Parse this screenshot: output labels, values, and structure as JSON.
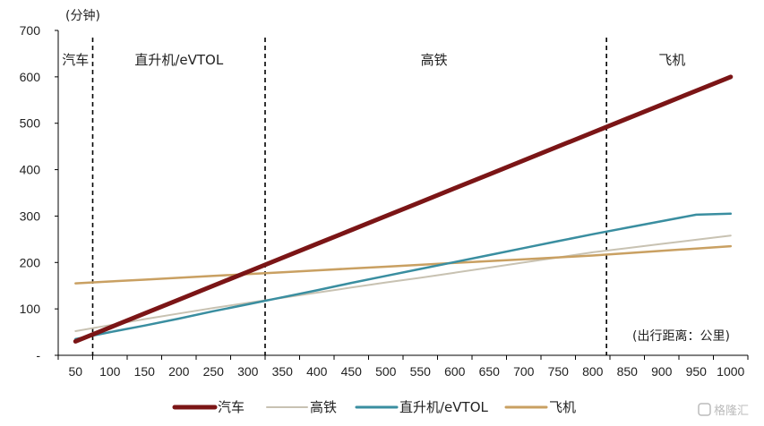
{
  "chart_data": {
    "type": "line",
    "y_unit_label": "(分钟)",
    "x_unit_label": "(出行距离：公里)",
    "x": [
      50,
      100,
      150,
      200,
      250,
      300,
      350,
      400,
      450,
      500,
      550,
      600,
      650,
      700,
      750,
      800,
      850,
      900,
      950,
      1000
    ],
    "xlim": [
      25,
      1025
    ],
    "ylim": [
      0,
      700
    ],
    "y_ticks": [
      0,
      100,
      200,
      300,
      400,
      500,
      600,
      700
    ],
    "y_tick_labels": [
      "-",
      "100",
      "200",
      "300",
      "400",
      "500",
      "600",
      "700"
    ],
    "series": [
      {
        "name": "汽车",
        "color": "#7b1516",
        "values": [
          30,
          60,
          90,
          120,
          150,
          180,
          210,
          240,
          270,
          300,
          330,
          360,
          390,
          420,
          450,
          480,
          510,
          540,
          570,
          600
        ]
      },
      {
        "name": "高铁",
        "color": "#c8c2b2",
        "values": [
          52,
          65,
          78,
          90,
          102,
          113,
          124,
          135,
          146,
          157,
          167,
          178,
          189,
          200,
          211,
          222,
          231,
          240,
          249,
          258
        ]
      },
      {
        "name": "直升机/eVTOL",
        "color": "#3a8ea0",
        "values": [
          35,
          50,
          64,
          79,
          95,
          110,
          125,
          140,
          156,
          171,
          186,
          201,
          216,
          231,
          246,
          261,
          275,
          289,
          303,
          305
        ]
      },
      {
        "name": "飞机",
        "color": "#c9a062",
        "values": [
          155,
          159,
          163,
          167,
          171,
          175,
          179,
          183,
          187,
          191,
          195,
          199,
          203,
          207,
          211,
          215,
          220,
          225,
          230,
          235
        ]
      }
    ],
    "dividers": [
      75,
      325,
      820
    ],
    "zones": [
      {
        "label": "汽车",
        "x": 50
      },
      {
        "label": "直升机/eVTOL",
        "x": 200
      },
      {
        "label": "高铁",
        "x": 570
      },
      {
        "label": "飞机",
        "x": 915
      }
    ],
    "legend_position": "bottom-center",
    "grid": false
  },
  "watermark": "格隆汇"
}
